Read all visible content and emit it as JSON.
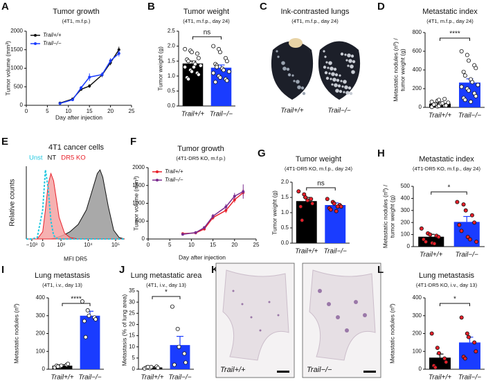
{
  "chart_data": [
    {
      "panel": "A",
      "type": "line",
      "title": "Tumor growth",
      "subtitle": "(4T1, m.f.p.)",
      "xlabel": "Day after injection",
      "ylabel": "Tumor volume (mm³)",
      "x": [
        8,
        11,
        13,
        15,
        18,
        20,
        22
      ],
      "xlim": [
        0,
        25
      ],
      "xticks": [
        0,
        5,
        10,
        15,
        20,
        25
      ],
      "ylim": [
        0,
        2000
      ],
      "yticks": [
        0,
        500,
        1000,
        1500,
        2000
      ],
      "series": [
        {
          "name": "Trail+/+",
          "color": "#111111",
          "values": [
            60,
            170,
            430,
            520,
            820,
            1150,
            1500
          ],
          "errors": [
            10,
            20,
            40,
            50,
            60,
            70,
            80
          ]
        },
        {
          "name": "Trail−/−",
          "color": "#1a3cff",
          "values": [
            50,
            150,
            470,
            760,
            830,
            1200,
            1400
          ],
          "errors": [
            10,
            20,
            50,
            100,
            60,
            70,
            80
          ]
        }
      ]
    },
    {
      "panel": "B",
      "type": "bar",
      "title": "Tumor weight",
      "subtitle": "(4T1, m.f.p., day 24)",
      "ylabel": "Tumor weight (g)",
      "annotation": "ns",
      "categories": [
        "Trail+/+",
        "Trail−/−"
      ],
      "values": [
        1.42,
        1.28
      ],
      "errors": [
        0.08,
        0.09
      ],
      "colors": [
        "#000000",
        "#1a3cff"
      ],
      "point_color": "#ffffff",
      "points": [
        [
          1.9,
          1.85,
          1.8,
          1.75,
          1.6,
          1.55,
          1.5,
          1.45,
          1.4,
          1.35,
          1.3,
          1.2,
          1.15,
          1.1,
          1.05,
          0.95,
          0.9,
          1.3
        ],
        [
          2.0,
          1.9,
          1.8,
          1.6,
          1.5,
          1.4,
          1.35,
          1.25,
          1.2,
          1.15,
          1.1,
          1.0,
          0.95,
          0.9,
          0.85,
          0.8,
          1.3
        ]
      ],
      "ylim": [
        0,
        2.5
      ],
      "yticks": [
        {
          "value": 0,
          "label": "0.0"
        },
        0.5,
        {
          "value": 1,
          "label": "1.0"
        },
        1.5,
        {
          "value": 2,
          "label": "2.0"
        },
        2.5
      ]
    },
    {
      "panel": "C",
      "type": "image",
      "title": "Ink-contrasted lungs",
      "subtitle": "(4T1, m.f.p., day 24)",
      "labels": [
        "Trail+/+",
        "Trail−/−"
      ]
    },
    {
      "panel": "D",
      "type": "bar",
      "title": "Metastatic index",
      "subtitle": "(4T1, m.f.p., day 24)",
      "ylabel": [
        "Metastatic nodules (nº) /",
        "tumor weight (g)"
      ],
      "annotation": "****",
      "categories": [
        "Trail+/+",
        "Trail−/−"
      ],
      "values": [
        40,
        265
      ],
      "errors": [
        8,
        40
      ],
      "colors": [
        "#000000",
        "#1a3cff"
      ],
      "point_color": "#ffffff",
      "points": [
        [
          5,
          10,
          15,
          20,
          25,
          30,
          35,
          40,
          45,
          50,
          60,
          70,
          80,
          90,
          20,
          30
        ],
        [
          600,
          560,
          500,
          450,
          420,
          380,
          340,
          300,
          270,
          240,
          220,
          200,
          180,
          150,
          120,
          100,
          80,
          60
        ]
      ],
      "ylim": [
        0,
        800
      ],
      "yticks": [
        0,
        200,
        400,
        600,
        800
      ]
    },
    {
      "panel": "E",
      "type": "histogram",
      "title": "4T1 cancer cells",
      "xlabel": "MFI DR5",
      "ylabel": "Relative counts",
      "x": [
        -0.6,
        -0.4,
        -0.2,
        0,
        0.1,
        0.2,
        0.3,
        0.4,
        0.5,
        0.6,
        0.8,
        1.0,
        1.3,
        1.6,
        1.8,
        2.0,
        2.1,
        2.2,
        2.4,
        2.6,
        2.8,
        3.0
      ],
      "xlim": [
        -0.6,
        3.0
      ],
      "xticks": [
        {
          "value": -0.4,
          "label": "−10³"
        },
        0,
        {
          "value": 0.67,
          "label": "10³"
        },
        {
          "value": 1.67,
          "label": "10⁴"
        },
        {
          "value": 2.67,
          "label": "10⁵"
        }
      ],
      "ylim": [
        0,
        100
      ],
      "series": [
        {
          "name": "Unst",
          "color": "#22c8e0",
          "fill": "none",
          "dashed": true,
          "values": [
            0,
            0,
            2,
            40,
            95,
            70,
            25,
            5,
            1,
            0,
            0,
            0,
            0,
            0,
            0,
            0,
            0,
            0,
            0,
            0,
            0,
            0
          ]
        },
        {
          "name": "NT",
          "color": "#111111",
          "fill": "#9a9a9a",
          "dashed": false,
          "values": [
            0,
            0,
            0,
            0,
            0,
            0,
            0,
            1,
            2,
            3,
            6,
            10,
            20,
            40,
            65,
            90,
            95,
            85,
            45,
            12,
            2,
            0
          ]
        },
        {
          "name": "DR5 KO",
          "color": "#e8202a",
          "fill": "#f5a3a3",
          "dashed": false,
          "values": [
            0,
            0,
            0,
            10,
            40,
            75,
            90,
            80,
            55,
            30,
            8,
            2,
            0,
            0,
            0,
            0,
            0,
            0,
            0,
            0,
            0,
            0
          ]
        }
      ]
    },
    {
      "panel": "F",
      "type": "line",
      "title": "Tumor growth",
      "subtitle": "(4T1-DR5 KO, m.f.p.)",
      "xlabel": "Day after injection",
      "ylabel": "Tumor volume (mm³)",
      "x": [
        8,
        11,
        13,
        15,
        18,
        20,
        22
      ],
      "xlim": [
        0,
        25
      ],
      "xticks": [
        0,
        5,
        10,
        15,
        20,
        25
      ],
      "ylim": [
        0,
        2000
      ],
      "yticks": [
        0,
        500,
        1000,
        1500,
        2000
      ],
      "series": [
        {
          "name": "Trail+/+",
          "color": "#e8202a",
          "values": [
            150,
            170,
            280,
            600,
            800,
            1100,
            1300
          ],
          "errors": [
            30,
            30,
            40,
            60,
            70,
            80,
            90
          ]
        },
        {
          "name": "Trail−/−",
          "color": "#7a2c8f",
          "values": [
            130,
            180,
            320,
            640,
            900,
            1200,
            1330
          ],
          "errors": [
            30,
            30,
            40,
            60,
            80,
            90,
            200
          ]
        }
      ]
    },
    {
      "panel": "G",
      "type": "bar",
      "title": "Tumor weight",
      "subtitle": "(4T1-DR5 KO, m.f.p., day 24)",
      "ylabel": "Tumor weight (g)",
      "annotation": "ns",
      "categories": [
        "Trail+/+",
        "Trail−/−"
      ],
      "values": [
        1.38,
        1.25
      ],
      "errors": [
        0.12,
        0.07
      ],
      "colors": [
        "#000000",
        "#1a3cff"
      ],
      "point_color": "#e8202a",
      "points": [
        [
          1.7,
          1.6,
          1.5,
          1.45,
          1.3,
          1.2,
          0.75,
          1.4
        ],
        [
          1.45,
          1.35,
          1.3,
          1.25,
          1.2,
          1.15,
          1.1,
          1.05,
          1.2
        ]
      ],
      "ylim": [
        0,
        2
      ],
      "yticks": [
        {
          "value": 0,
          "label": "0.0"
        },
        0.5,
        {
          "value": 1,
          "label": "1.0"
        },
        1.5,
        {
          "value": 2,
          "label": "2.0"
        }
      ]
    },
    {
      "panel": "H",
      "type": "bar",
      "title": "Metastatic index",
      "subtitle": "(4T1-DR5 KO, m.f.p., day 24)",
      "ylabel": [
        "Metastatic nodules (nº) /",
        "tumor weight (g)"
      ],
      "annotation": "*",
      "categories": [
        "Trail+/+",
        "Trail−/−"
      ],
      "values": [
        82,
        205
      ],
      "errors": [
        20,
        45
      ],
      "colors": [
        "#000000",
        "#1a3cff"
      ],
      "point_color": "#e8202a",
      "points": [
        [
          150,
          110,
          100,
          90,
          80,
          60,
          40,
          30,
          25
        ],
        [
          370,
          350,
          300,
          260,
          200,
          180,
          130,
          80,
          60,
          40
        ]
      ],
      "ylim": [
        0,
        500
      ],
      "yticks": [
        0,
        100,
        200,
        300,
        400,
        500
      ]
    },
    {
      "panel": "I",
      "type": "bar",
      "title": "Lung metastasis",
      "subtitle": "(4T1, i.v., day 13)",
      "ylabel": "Metastatic nodules (nº)",
      "annotation": "****",
      "categories": [
        "Trail+/+",
        "Trail−/−"
      ],
      "values": [
        20,
        300
      ],
      "errors": [
        5,
        25
      ],
      "colors": [
        "#000000",
        "#1a3cff"
      ],
      "point_color": "#ffffff",
      "points": [
        [
          10,
          15,
          20,
          25,
          30,
          20,
          15
        ],
        [
          380,
          330,
          300,
          290,
          280,
          270,
          180
        ]
      ],
      "ylim": [
        0,
        400
      ],
      "yticks": [
        0,
        100,
        200,
        300,
        400
      ]
    },
    {
      "panel": "J",
      "type": "bar",
      "title": "Lung metastatic area",
      "subtitle": "(4T1, i.v., day 13)",
      "ylabel": "Metastasis (% of lung area)",
      "annotation": "*",
      "categories": [
        "Trail+/+",
        "Trail−/−"
      ],
      "values": [
        0.8,
        10.8
      ],
      "errors": [
        0.3,
        3.9
      ],
      "colors": [
        "#000000",
        "#1a3cff"
      ],
      "point_color": "#ffffff",
      "points": [
        [
          0.3,
          0.5,
          1,
          1.2,
          0.6,
          0.8,
          1.0
        ],
        [
          28,
          18,
          10,
          7,
          3,
          2
        ]
      ],
      "ylim": [
        0,
        35
      ],
      "yticks": [
        0,
        5,
        10,
        15,
        20,
        25,
        30,
        35
      ]
    },
    {
      "panel": "K",
      "type": "image",
      "labels": [
        "Trail+/+",
        "Trail−/−"
      ]
    },
    {
      "panel": "L",
      "type": "bar",
      "title": "Lung metastasis",
      "subtitle": "(4T1-DR5 KO, i.v., day 13)",
      "ylabel": "Metastatic nodules (nº)",
      "annotation": "*",
      "categories": [
        "Trail+/+",
        "Trail−/−"
      ],
      "values": [
        65,
        150
      ],
      "errors": [
        20,
        30
      ],
      "colors": [
        "#000000",
        "#1a3cff"
      ],
      "point_color": "#e8202a",
      "points": [
        [
          200,
          120,
          90,
          60,
          40,
          20,
          10
        ],
        [
          290,
          200,
          180,
          150,
          100,
          70,
          60
        ]
      ],
      "ylim": [
        0,
        400
      ],
      "yticks": [
        0,
        100,
        200,
        300,
        400
      ]
    }
  ]
}
